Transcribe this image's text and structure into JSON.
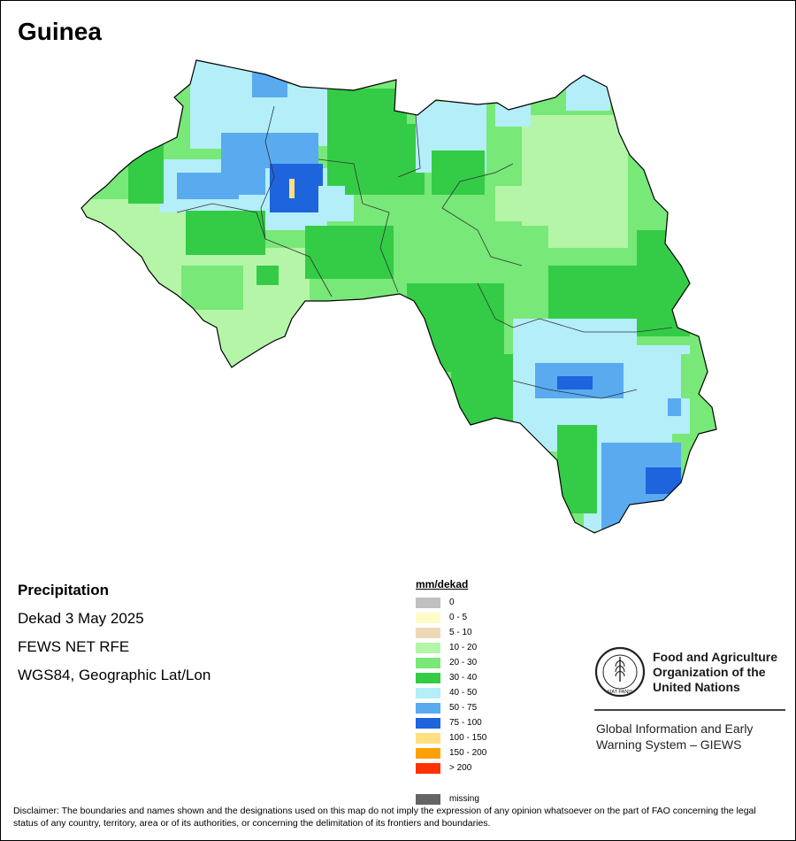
{
  "map": {
    "title": "Guinea",
    "product": "Precipitation",
    "period": "Dekad 3 May 2025",
    "source": "FEWS NET RFE",
    "projection": "WGS84, Geographic Lat/Lon"
  },
  "legend": {
    "unit": "mm/dekad",
    "classes": [
      {
        "label": "0",
        "color": "#c0c0c0"
      },
      {
        "label": "0 - 5",
        "color": "#fffbc8"
      },
      {
        "label": "5 - 10",
        "color": "#ecd8b6"
      },
      {
        "label": "10 - 20",
        "color": "#b4f5a8"
      },
      {
        "label": "20 - 30",
        "color": "#78e878"
      },
      {
        "label": "30 - 40",
        "color": "#34cc46"
      },
      {
        "label": "40 - 50",
        "color": "#b4eef8"
      },
      {
        "label": "50 - 75",
        "color": "#5aaaf0"
      },
      {
        "label": "75 - 100",
        "color": "#1e64dc"
      },
      {
        "label": "100 - 150",
        "color": "#ffe080"
      },
      {
        "label": "150 - 200",
        "color": "#ffa000"
      },
      {
        "label": "> 200",
        "color": "#ff3200"
      }
    ],
    "missing": {
      "label": "missing",
      "color": "#646464"
    }
  },
  "logo": {
    "org_name": "Food and Agriculture\nOrganization of the\nUnited Nations",
    "motto": "FIAT PANIS",
    "letters": "FAO",
    "icon": "fao-wheat-logo-icon"
  },
  "giews": "Global Information and Early\nWarning System – GIEWS",
  "disclaimer": "Disclaimer: The boundaries and names shown and the designations used on this map do not imply the expression of any opinion whatsoever on the part of FAO concerning the legal status of any country, territory, area or of its authorities, or concerning the delimitation of its frontiers and boundaries."
}
